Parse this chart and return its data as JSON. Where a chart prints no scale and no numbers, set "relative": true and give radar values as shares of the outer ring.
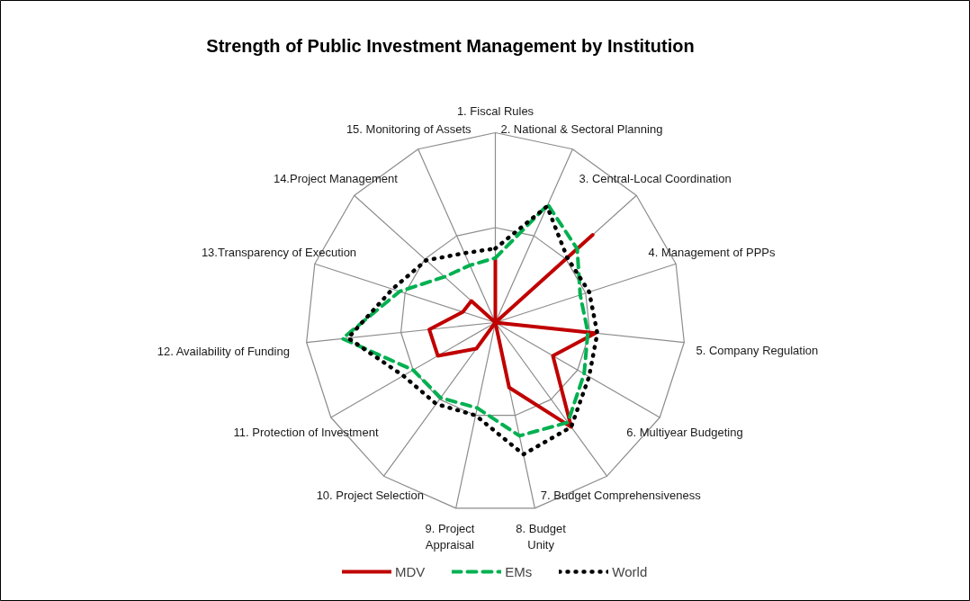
{
  "chart_data": {
    "type": "radar",
    "title": "Strength of Public Investment Management by Institution",
    "relative": true,
    "grid": true,
    "legend": "bottom",
    "marker": "none",
    "categories": [
      "1. Fiscal Rules",
      "2. National & Sectoral Planning",
      "3. Central-Local Coordination",
      "4. Management of PPPs",
      "5. Company Regulation",
      "6. Multiyear Budgeting",
      "7. Budget Comprehensiveness",
      "8. Budget Unity",
      "9. Project Appraisal",
      "10. Project Selection",
      "11. Protection of Investment",
      "12. Availability of Funding",
      "13.Transparency of Execution",
      "14.Project Management",
      "15. Monitoring of Assets"
    ],
    "series": [
      {
        "name": "MDV",
        "color": "#c00000",
        "line_style": "solid",
        "values": [
          0.33,
          0.0,
          0.69,
          0.0,
          0.53,
          0.35,
          0.68,
          0.35,
          0.0,
          0.17,
          0.35,
          0.35,
          0.18,
          0.17,
          0.0
        ]
      },
      {
        "name": "EMs",
        "color": "#00b050",
        "line_style": "dashed",
        "values": [
          0.34,
          0.68,
          0.58,
          0.47,
          0.49,
          0.54,
          0.65,
          0.61,
          0.46,
          0.49,
          0.5,
          0.81,
          0.53,
          0.36,
          0.33
        ]
      },
      {
        "name": "World",
        "color": "#000000",
        "line_style": "dotted",
        "values": [
          0.39,
          0.67,
          0.51,
          0.52,
          0.54,
          0.57,
          0.68,
          0.71,
          0.5,
          0.53,
          0.56,
          0.78,
          0.57,
          0.49,
          0.4
        ]
      }
    ]
  }
}
